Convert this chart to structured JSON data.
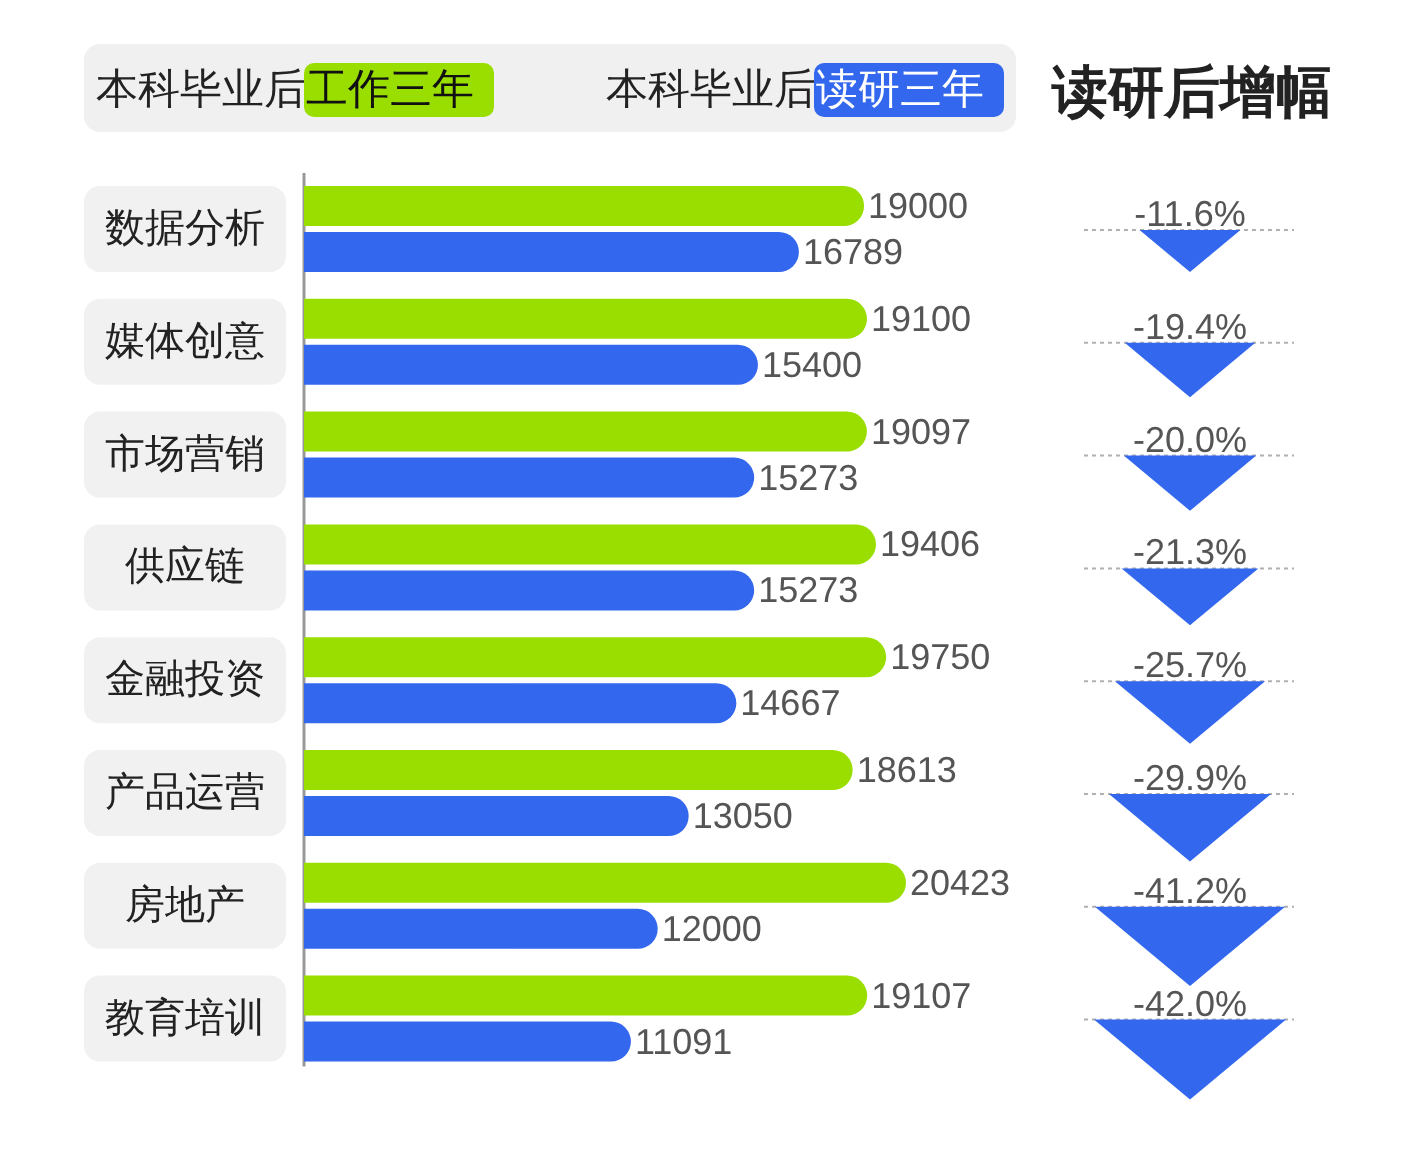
{
  "chart_data": [
    {
      "type": "bar",
      "orientation": "horizontal",
      "categories": [
        "数据分析",
        "媒体创意",
        "市场营销",
        "供应链",
        "金融投资",
        "产品运营",
        "房地产",
        "教育培训"
      ],
      "series": [
        {
          "name": "本科毕业后工作三年",
          "color": "#9ade00",
          "values": [
            19000,
            19100,
            19097,
            19406,
            19750,
            18613,
            20423,
            19107
          ]
        },
        {
          "name": "本科毕业后读研三年",
          "color": "#3367ee",
          "values": [
            16789,
            15400,
            15273,
            15273,
            14667,
            13050,
            12000,
            11091
          ]
        }
      ],
      "data_labels": true,
      "legend": "top"
    },
    {
      "type": "other",
      "title": "读研后增幅",
      "color": "#3367ee",
      "values": [
        -11.6,
        -19.4,
        -20.0,
        -21.3,
        -25.7,
        -29.9,
        -41.2,
        -42.0
      ],
      "value_labels": [
        "-11.6%",
        "-19.4%",
        "-20.0%",
        "-21.3%",
        "-25.7%",
        "-29.9%",
        "-41.2%",
        "-42.0%"
      ]
    }
  ]
}
